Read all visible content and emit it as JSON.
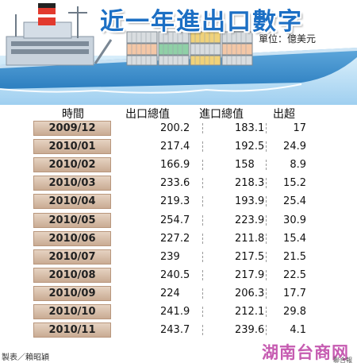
{
  "title": "近一年進出口數字",
  "unit": "單位：億美元",
  "table": {
    "headers": [
      "時間",
      "出口總值",
      "進口總值",
      "出超"
    ]
  },
  "chart_data": {
    "type": "table",
    "title": "近一年進出口數字",
    "unit": "單位：億美元",
    "columns": [
      "時間",
      "出口總值",
      "進口總值",
      "出超"
    ],
    "rows": [
      [
        "2009/12",
        "200.2",
        "183.1",
        "17"
      ],
      [
        "2010/01",
        "217.4",
        "192.5",
        "24.9"
      ],
      [
        "2010/02",
        "166.9",
        "158",
        "8.9"
      ],
      [
        "2010/03",
        "233.6",
        "218.3",
        "15.2"
      ],
      [
        "2010/04",
        "219.3",
        "193.9",
        "25.4"
      ],
      [
        "2010/05",
        "254.7",
        "223.9",
        "30.9"
      ],
      [
        "2010/06",
        "227.2",
        "211.8",
        "15.4"
      ],
      [
        "2010/07",
        "239",
        "217.5",
        "21.5"
      ],
      [
        "2010/08",
        "240.5",
        "217.9",
        "22.5"
      ],
      [
        "2010/09",
        "224",
        "206.3",
        "17.7"
      ],
      [
        "2010/10",
        "241.9",
        "212.1",
        "29.8"
      ],
      [
        "2010/11",
        "243.7",
        "239.6",
        "4.1"
      ]
    ]
  },
  "credit": "製表／賴昭穎",
  "watermark": "湖南台商网",
  "logo_text": "聯合報",
  "colors": {
    "title": "#1c6fc4",
    "sea": "#b7dcf3",
    "date_cell": "#d9c0ab",
    "watermark": "#c65bb1"
  }
}
